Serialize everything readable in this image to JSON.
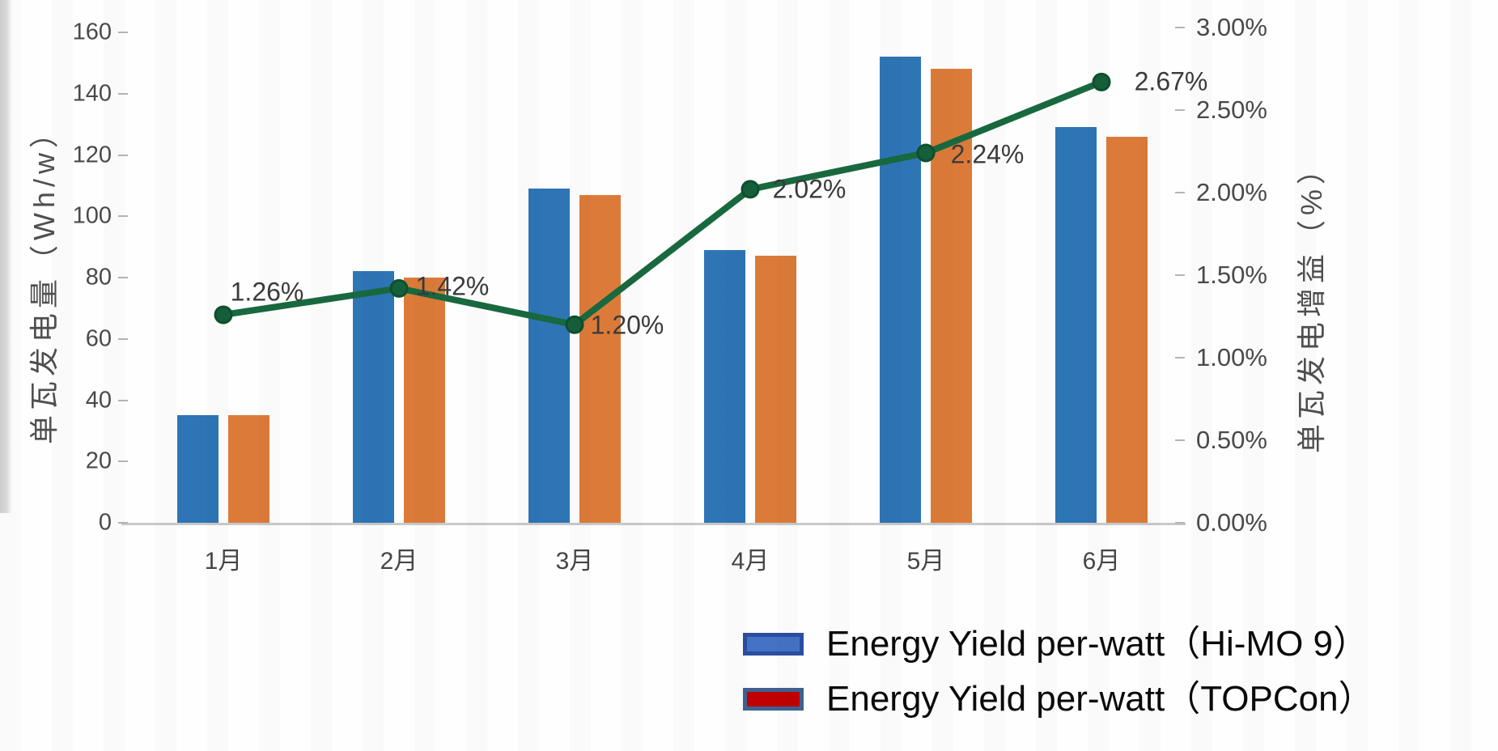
{
  "chart_data": {
    "type": "bar",
    "subtype": "combo-dual-axis-bar-line",
    "categories": [
      "1月",
      "2月",
      "3月",
      "4月",
      "5月",
      "6月"
    ],
    "series": [
      {
        "name": "Energy Yield per-watt（Hi-MO 9）",
        "type": "bar",
        "axis": "left",
        "color": "#2E75B6",
        "values": [
          35,
          82,
          109,
          89,
          152,
          129
        ]
      },
      {
        "name": "Energy Yield per-watt（TOPCon）",
        "type": "bar",
        "axis": "left",
        "color": "#DC7B39",
        "values": [
          35,
          80,
          107,
          87,
          148,
          126
        ]
      },
      {
        "name": "单瓦发电增益",
        "type": "line",
        "axis": "right",
        "color": "#18693F",
        "marker_color": "#15603A",
        "values": [
          1.26,
          1.42,
          1.2,
          2.02,
          2.24,
          2.67
        ],
        "point_labels": [
          "1.26%",
          "1.42%",
          "1.20%",
          "2.02%",
          "2.24%",
          "2.67%"
        ]
      }
    ],
    "left_axis": {
      "label": "单瓦发电量（Wh/w）",
      "min": 0,
      "max": 160,
      "tick_step": 20,
      "tick_labels": [
        "0",
        "20",
        "40",
        "60",
        "80",
        "100",
        "120",
        "140",
        "160"
      ],
      "tick_values": [
        0,
        20,
        40,
        60,
        80,
        100,
        120,
        140,
        160
      ]
    },
    "right_axis": {
      "label": "单瓦发电增益（%）",
      "min": 0,
      "max": 3,
      "tick_step": 0.5,
      "tick_labels": [
        "0.00%",
        "0.50%",
        "1.00%",
        "1.50%",
        "2.00%",
        "2.50%",
        "3.00%"
      ],
      "tick_values": [
        0,
        0.5,
        1.0,
        1.5,
        2.0,
        2.5,
        3.0
      ]
    },
    "grid": "off",
    "legend": {
      "position": "bottom-right",
      "items": [
        {
          "label": "Energy Yield per-watt（Hi-MO 9）",
          "swatch_fill": "#4472C4",
          "swatch_border": "#2B4EA0"
        },
        {
          "label": "Energy Yield per-watt（TOPCon）",
          "swatch_fill": "#C00000",
          "swatch_border": "#3E6191"
        }
      ]
    }
  }
}
